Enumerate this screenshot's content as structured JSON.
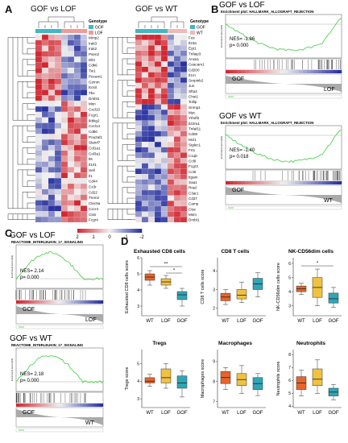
{
  "panels": {
    "A": {
      "letter": "A",
      "left_title": "GOF vs LOF",
      "right_title": "GOF vs WT",
      "legend_title": "Genotype",
      "left_legend": [
        {
          "label": "GOF",
          "color": "#3fb8c4"
        },
        {
          "label": "LOF",
          "color": "#f09a9a"
        }
      ],
      "right_legend": [
        {
          "label": "GOF",
          "color": "#3fb8c4"
        },
        {
          "label": "WT",
          "color": "#f2b7b7"
        }
      ],
      "left_genes": [
        "Mmp2",
        "Irak3",
        "Irak2",
        "Psen2",
        "Dll4",
        "Cdk6",
        "Tie1",
        "Pecam1",
        "Gzmm",
        "Ecsit",
        "Tbx",
        "Dmbt1",
        "Msn",
        "Cxcl10",
        "Fcgr1",
        "Ikbkg2",
        "Cxcl14",
        "Cd80",
        "Pou2af1",
        "Slamf7",
        "Col1a1",
        "Col3a1",
        "Il6",
        "Il1rl1",
        "Sell",
        "Il1",
        "Cd44",
        "Cx3r",
        "Cd22",
        "Trem2",
        "Clec5a",
        "Cxcr4",
        "Ctss",
        "Fcgr4"
      ],
      "right_genes": [
        "Fos",
        "Il23a",
        "Egr1",
        "Tnfaip3",
        "Anxa1",
        "Ceacam1",
        "Cd200",
        "Il1rn",
        "Serpinb2",
        "Jun",
        "Sfta3",
        "Chst1",
        "Tollip",
        "Snrnp1",
        "Myc",
        "Ythdf2",
        "Il22ra1",
        "Tnfaf11",
        "Cd08",
        "Mcl1",
        "Siglec1",
        "Frt1",
        "C1qb",
        "Ccl8",
        "Fcgr3",
        "Ccl6",
        "Itgam",
        "Saa1",
        "Rrad",
        "C3ar1",
        "Cd37",
        "Camp",
        "Ctsc",
        "Msm",
        "Dmbt1"
      ],
      "colorbar": [
        "2",
        "1",
        "0",
        "-1",
        "-2"
      ]
    },
    "B": {
      "letter": "B",
      "plots": [
        {
          "title": "GOF vs LOF",
          "subtitle": "Enrichment plot: HALLMARK_ALLOGRAFT_REJECTION",
          "nes": "NES= -1.86",
          "p": "p= 0.000",
          "lo": "GOF",
          "hi": "LOF"
        },
        {
          "title": "GOF vs WT",
          "subtitle": "Enrichment plot: HALLMARK_ALLOGRAFT_REJECTION",
          "nes": "NES= -1.40",
          "p": "p= 0.018",
          "lo": "GOF",
          "hi": "WT"
        }
      ]
    },
    "C": {
      "letter": "C",
      "plots": [
        {
          "title": "GOF vs LOF",
          "subtitle": "REACTOME_INTERLEUKIN_17_SIGNALING",
          "nes": "NES= 2.14",
          "p": "p= 0.000",
          "lo": "GOF",
          "hi": "LOF"
        },
        {
          "title": "GOF vs WT",
          "subtitle": "REACTOME_INTERLEUKIN_17_SIGNALING",
          "nes": "NES= 2.18",
          "p": "p= 0.000",
          "lo": "GOF",
          "hi": "WT"
        }
      ]
    },
    "D": {
      "letter": "D"
    }
  },
  "chart_data": [
    {
      "type": "box",
      "title": "Exhausted CD8 cells",
      "ylabel": "Exhausted CD8 cells score",
      "categories": [
        "WT",
        "LOF",
        "GOF"
      ],
      "stats": [
        [
          4.3,
          4.6,
          4.8,
          5.0,
          5.2
        ],
        [
          4.1,
          4.3,
          4.5,
          4.7,
          4.9
        ],
        [
          3.0,
          3.4,
          3.7,
          3.9,
          4.1
        ]
      ],
      "sig": [
        "**",
        "*"
      ]
    },
    {
      "type": "box",
      "title": "CD8 T cells",
      "ylabel": "CD8 T cells score",
      "categories": [
        "WT",
        "LOF",
        "GOF"
      ],
      "stats": [
        [
          2.2,
          2.4,
          2.6,
          2.8,
          3.0
        ],
        [
          2.3,
          2.5,
          2.7,
          3.0,
          3.4
        ],
        [
          2.6,
          3.0,
          3.3,
          3.6,
          3.9
        ]
      ],
      "sig": []
    },
    {
      "type": "box",
      "title": "NK-CD56dim cells",
      "ylabel": "NK-CD56dim cells score",
      "categories": [
        "WT",
        "LOF",
        "GOF"
      ],
      "stats": [
        [
          3.8,
          4.0,
          4.2,
          4.4,
          4.6
        ],
        [
          3.0,
          3.6,
          4.3,
          5.0,
          5.6
        ],
        [
          2.9,
          3.2,
          3.5,
          3.9,
          4.3
        ]
      ],
      "sig": [
        "*"
      ]
    },
    {
      "type": "box",
      "title": "Tregs",
      "ylabel": "Tregs score",
      "categories": [
        "WT",
        "LOF",
        "GOF"
      ],
      "stats": [
        [
          3.7,
          3.9,
          4.0,
          4.2,
          4.4
        ],
        [
          3.6,
          3.9,
          4.2,
          4.7,
          5.0
        ],
        [
          3.1,
          3.6,
          3.9,
          4.3,
          4.6
        ]
      ],
      "sig": []
    },
    {
      "type": "box",
      "title": "Macrophages",
      "ylabel": "Macrophages score",
      "categories": [
        "WT",
        "LOF",
        "GOF"
      ],
      "stats": [
        [
          7.6,
          7.9,
          8.2,
          8.5,
          8.7
        ],
        [
          7.4,
          7.8,
          8.1,
          8.4,
          8.8
        ],
        [
          7.3,
          7.6,
          7.9,
          8.2,
          8.4
        ]
      ],
      "sig": []
    },
    {
      "type": "box",
      "title": "Neutrophils",
      "ylabel": "Neutrophils score",
      "categories": [
        "WT",
        "LOF",
        "GOF"
      ],
      "stats": [
        [
          4.8,
          5.3,
          5.8,
          6.3,
          6.8
        ],
        [
          5.0,
          5.6,
          6.1,
          6.9,
          7.6
        ],
        [
          4.5,
          4.8,
          5.1,
          5.4,
          5.7
        ]
      ],
      "sig": []
    }
  ],
  "colors": {
    "wt": "#e8642a",
    "lof": "#f0c240",
    "gof": "#2fa6b6",
    "es_line": "#4fd34f"
  }
}
